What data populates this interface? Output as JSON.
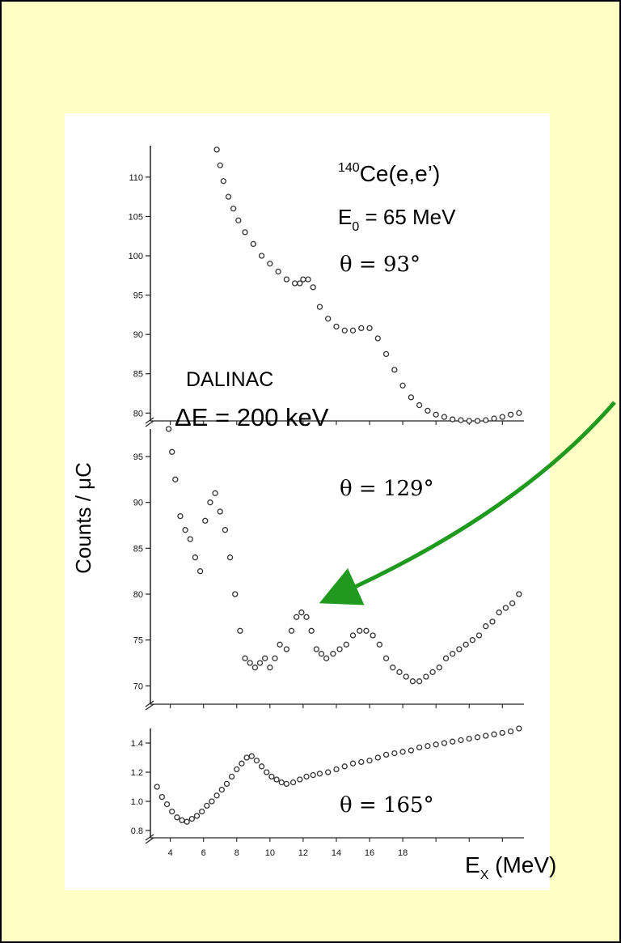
{
  "ylabel_main": "Counts / μC",
  "annotations": {
    "reaction_sup": "140",
    "reaction": "Ce(e,e’)",
    "energy_main": "E",
    "energy_sub": "0",
    "energy_rest": " = 65 MeV",
    "facility": "DALINAC",
    "resolution": "ΔE = 200 keV",
    "xlabel_main": "E",
    "xlabel_sub": "X",
    "xlabel_rest": " (MeV)"
  },
  "colors": {
    "background": "#ffffc5",
    "arrow": "#1f9a1f",
    "points": "#333333"
  },
  "chart_data": [
    {
      "type": "scatter",
      "panel": "top",
      "angle_label": "θ  = 93°",
      "ylim": [
        79,
        114
      ],
      "yticks": [
        80,
        85,
        90,
        95,
        100,
        105,
        110
      ],
      "series": [
        {
          "x": [
            6.8,
            7.0,
            7.2,
            7.5,
            7.8,
            8.1,
            8.5,
            9.0,
            9.5,
            10.0,
            10.5,
            11.0,
            11.5,
            11.8,
            12.0,
            12.3,
            12.6,
            13.0,
            13.5,
            14.0,
            14.5,
            15.0,
            15.5,
            16.0,
            16.5,
            17.0,
            17.5,
            18.0,
            18.5,
            19.0,
            19.5,
            20.0,
            20.5,
            21.0,
            21.5,
            22.0,
            22.5,
            23.0,
            23.5,
            24.0,
            24.5,
            25.0
          ],
          "y": [
            113.5,
            111.5,
            109.5,
            107.5,
            106,
            104.5,
            103,
            101.5,
            100,
            99,
            98,
            97,
            96.5,
            96.5,
            97,
            97,
            96,
            93.5,
            92,
            91,
            90.5,
            90.5,
            90.8,
            90.8,
            89.5,
            87.5,
            85.5,
            83.5,
            82,
            81,
            80.3,
            79.8,
            79.5,
            79.2,
            79.1,
            79,
            79,
            79.1,
            79.3,
            79.5,
            79.8,
            80
          ]
        }
      ]
    },
    {
      "type": "scatter",
      "panel": "middle",
      "angle_label": "θ  = 129°",
      "ylim": [
        68,
        98
      ],
      "yticks": [
        70,
        75,
        80,
        85,
        90,
        95
      ],
      "series": [
        {
          "x": [
            3.9,
            4.1,
            4.3,
            4.6,
            4.9,
            5.2,
            5.5,
            5.8,
            6.1,
            6.4,
            6.7,
            7.0,
            7.3,
            7.6,
            7.9,
            8.2,
            8.5,
            8.8,
            9.1,
            9.4,
            9.7,
            10.0,
            10.3,
            10.6,
            11.0,
            11.3,
            11.6,
            11.9,
            12.2,
            12.5,
            12.8,
            13.1,
            13.4,
            13.8,
            14.2,
            14.6,
            15.0,
            15.4,
            15.8,
            16.2,
            16.6,
            17.0,
            17.4,
            17.8,
            18.2,
            18.6,
            19.0,
            19.4,
            19.8,
            20.2,
            20.6,
            21.0,
            21.4,
            21.8,
            22.2,
            22.6,
            23.0,
            23.4,
            23.8,
            24.2,
            24.6,
            25.0
          ],
          "y": [
            98,
            95.5,
            92.5,
            88.5,
            87,
            86,
            84,
            82.5,
            88,
            90,
            91,
            89,
            87,
            84,
            80,
            76,
            73,
            72.5,
            72,
            72.5,
            73,
            72,
            73,
            74.5,
            74,
            76,
            77.5,
            78,
            77.5,
            76,
            74,
            73.5,
            73,
            73.5,
            74,
            74.5,
            75.5,
            76,
            76,
            75.5,
            74.5,
            73,
            72,
            71.5,
            71,
            70.5,
            70.5,
            71,
            71.5,
            72,
            73,
            73.5,
            74,
            74.5,
            75,
            75.5,
            76.5,
            77,
            78,
            78.5,
            79,
            80
          ]
        }
      ]
    },
    {
      "type": "scatter",
      "panel": "bottom",
      "angle_label": "θ  = 165°",
      "ylim": [
        0.75,
        1.5
      ],
      "yticks": [
        0.8,
        1.0,
        1.2,
        1.4
      ],
      "ytick_labels": [
        "0.8",
        "1.0",
        "1.2",
        "1.4"
      ],
      "xlim": [
        2.8,
        25.3
      ],
      "xticks": [
        4,
        6,
        8,
        10,
        12,
        14,
        16,
        18
      ],
      "series": [
        {
          "x": [
            3.2,
            3.5,
            3.8,
            4.1,
            4.4,
            4.7,
            5.0,
            5.3,
            5.6,
            5.9,
            6.2,
            6.5,
            6.8,
            7.1,
            7.4,
            7.7,
            8.0,
            8.3,
            8.6,
            8.9,
            9.2,
            9.5,
            9.8,
            10.1,
            10.4,
            10.7,
            11.0,
            11.4,
            11.8,
            12.2,
            12.6,
            13.0,
            13.5,
            14.0,
            14.5,
            15.0,
            15.5,
            16.0,
            16.5,
            17.0,
            17.5,
            18.0,
            18.5,
            19.0,
            19.5,
            20.0,
            20.5,
            21.0,
            21.5,
            22.0,
            22.5,
            23.0,
            23.5,
            24.0,
            24.5,
            25.0
          ],
          "y": [
            1.1,
            1.03,
            0.98,
            0.93,
            0.89,
            0.87,
            0.86,
            0.88,
            0.9,
            0.93,
            0.97,
            1.0,
            1.04,
            1.08,
            1.12,
            1.17,
            1.22,
            1.26,
            1.3,
            1.31,
            1.28,
            1.24,
            1.2,
            1.17,
            1.15,
            1.13,
            1.12,
            1.13,
            1.15,
            1.17,
            1.18,
            1.19,
            1.2,
            1.22,
            1.24,
            1.26,
            1.27,
            1.28,
            1.3,
            1.32,
            1.33,
            1.34,
            1.35,
            1.37,
            1.38,
            1.39,
            1.4,
            1.41,
            1.42,
            1.43,
            1.44,
            1.45,
            1.46,
            1.47,
            1.48,
            1.5
          ]
        }
      ]
    }
  ]
}
